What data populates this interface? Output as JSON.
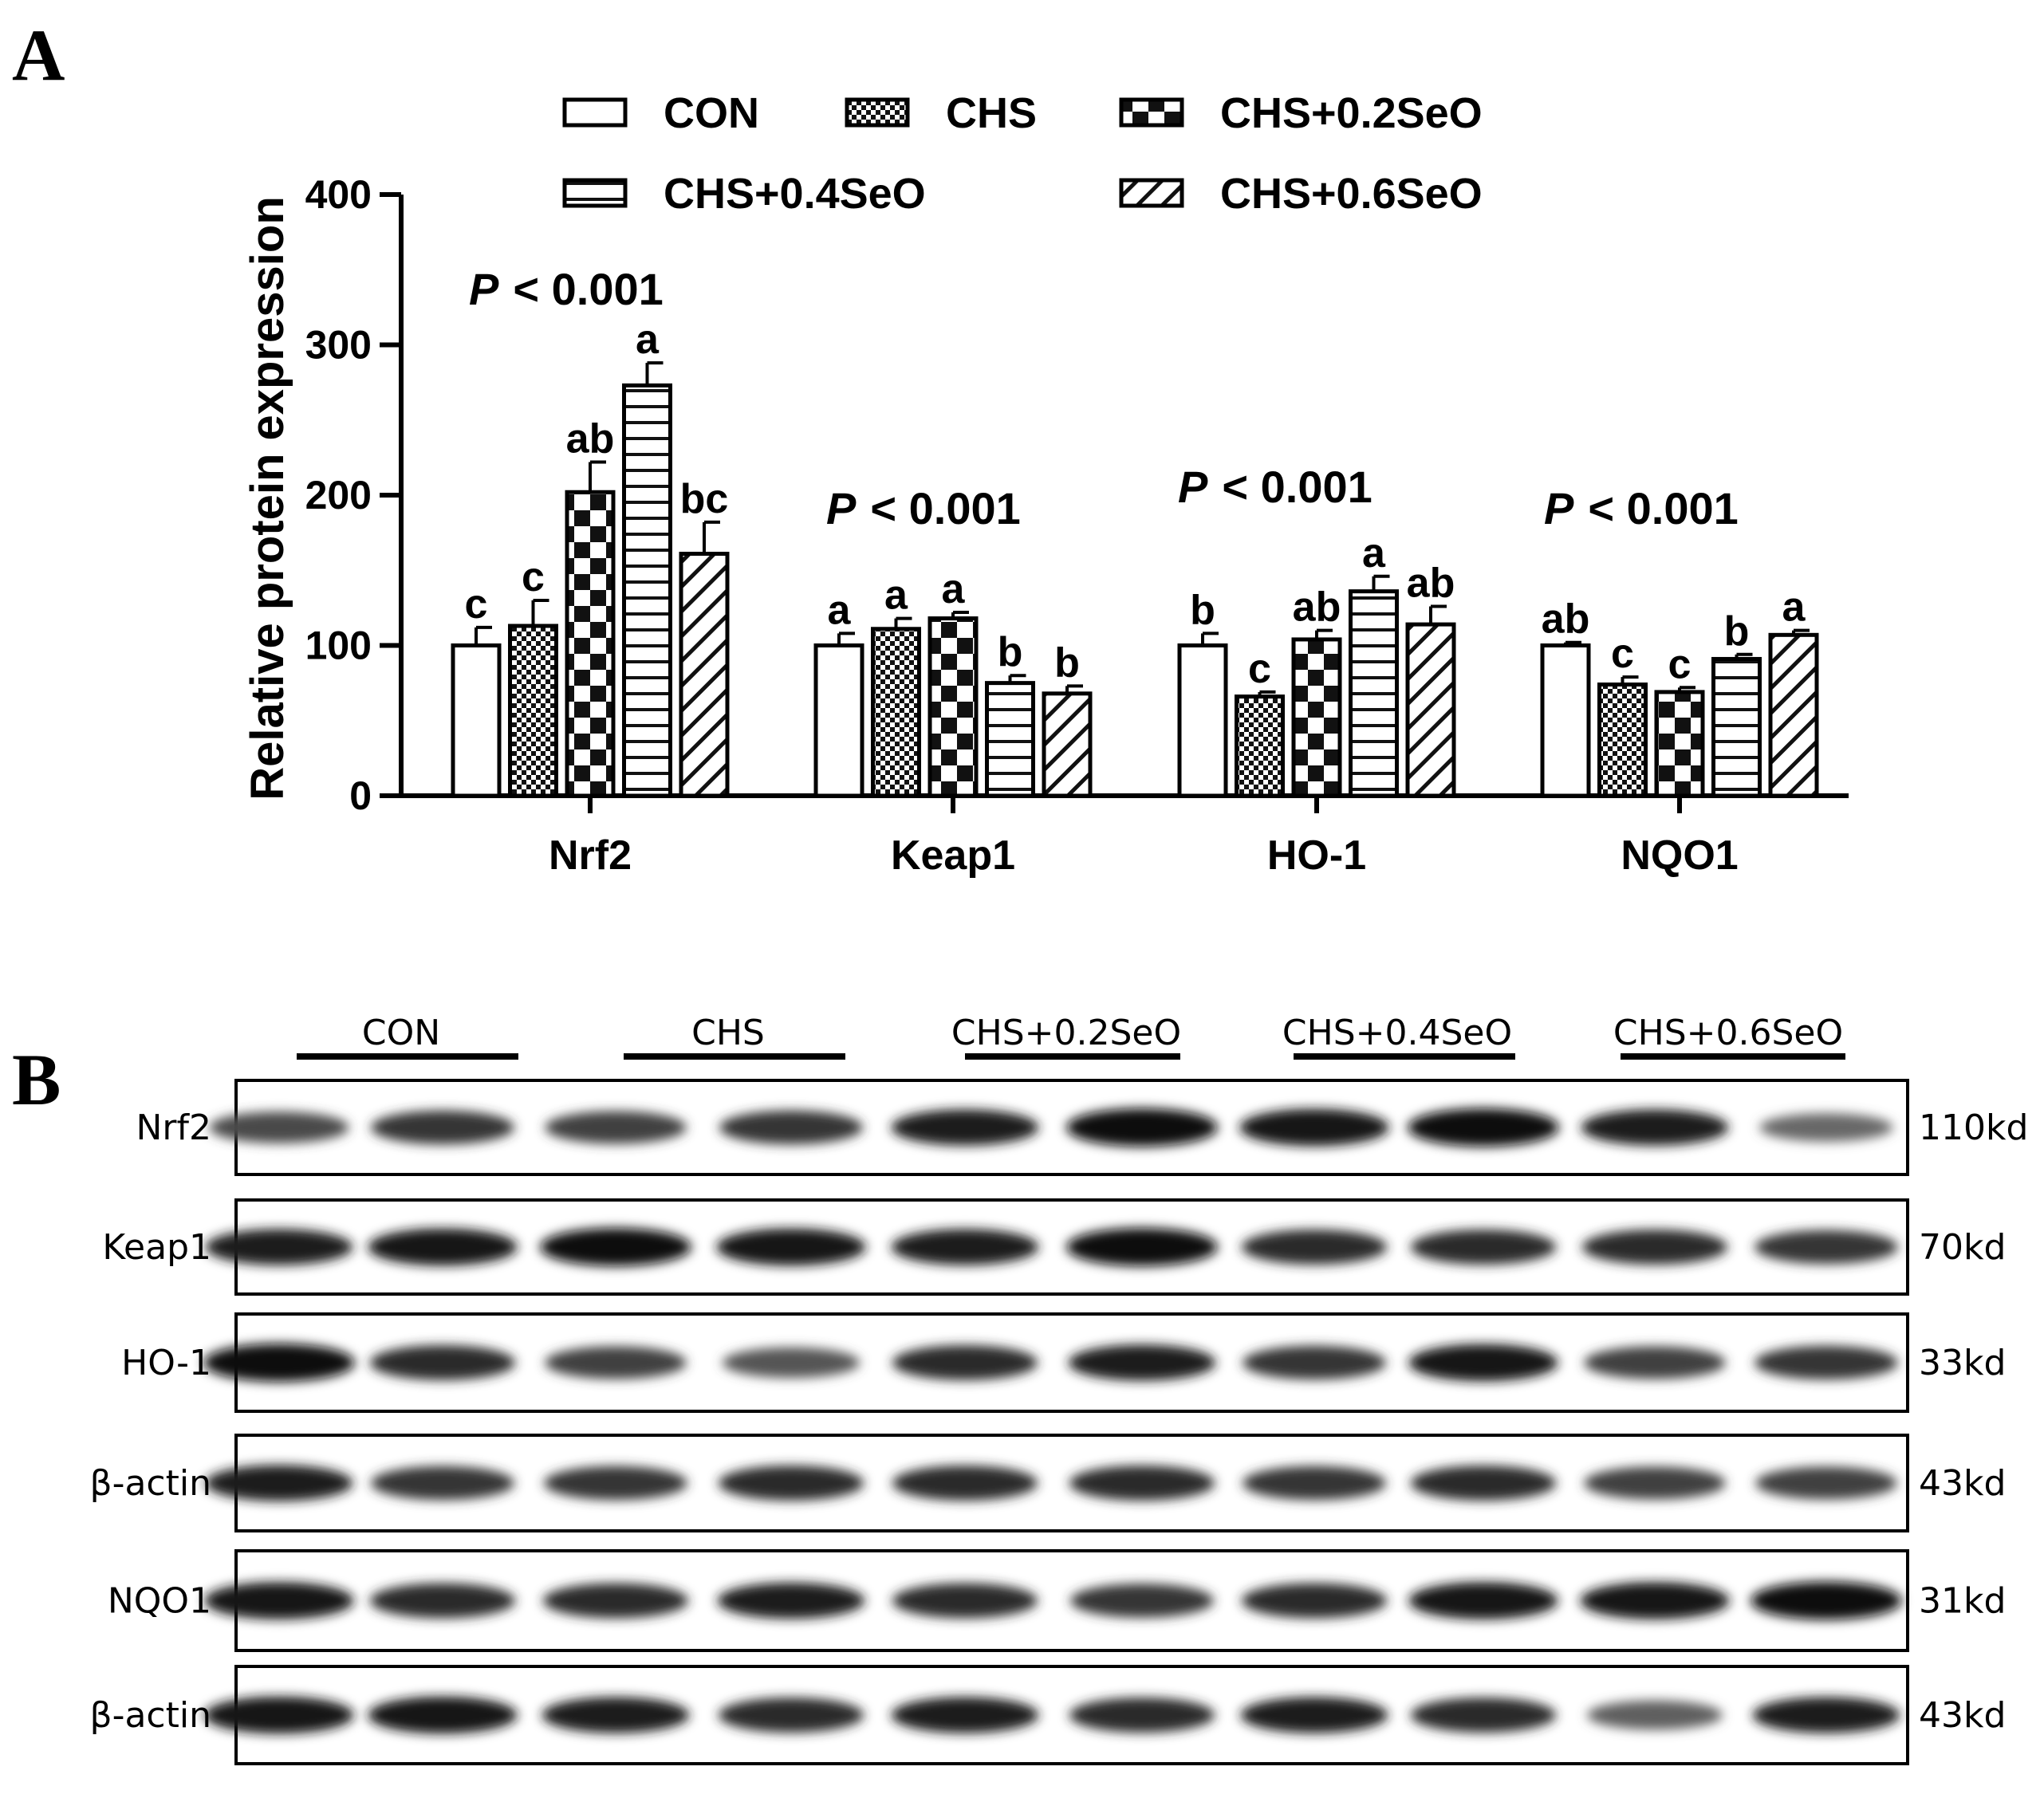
{
  "panel_a_label": "A",
  "panel_b_label": "B",
  "chart_data": {
    "type": "bar",
    "ylabel": "Relative protein expression",
    "xlabel": "",
    "ylim": [
      0,
      400
    ],
    "yticks": [
      "0",
      "100",
      "200",
      "300",
      "400"
    ],
    "grid": false,
    "legend_position": "top",
    "categories": [
      "Nrf2",
      "Keap1",
      "HO-1",
      "NQO1"
    ],
    "series": [
      {
        "name": "CON",
        "pattern": "white",
        "values": [
          100,
          100,
          100,
          100
        ],
        "errors": [
          12,
          8,
          8,
          2
        ],
        "letters": [
          "c",
          "a",
          "b",
          "ab"
        ]
      },
      {
        "name": "CHS",
        "pattern": "fine-checker",
        "values": [
          113,
          111,
          66,
          74
        ],
        "errors": [
          17,
          7,
          3,
          5
        ],
        "letters": [
          "c",
          "a",
          "c",
          "c"
        ]
      },
      {
        "name": "CHS+0.2SeO",
        "pattern": "coarse-checker",
        "values": [
          202,
          118,
          104,
          69
        ],
        "errors": [
          20,
          4,
          6,
          3
        ],
        "letters": [
          "ab",
          "a",
          "ab",
          "c"
        ]
      },
      {
        "name": "CHS+0.4SeO",
        "pattern": "horizontal-lines",
        "values": [
          273,
          75,
          136,
          91
        ],
        "errors": [
          15,
          5,
          10,
          3
        ],
        "letters": [
          "a",
          "b",
          "a",
          "b"
        ]
      },
      {
        "name": "CHS+0.6SeO",
        "pattern": "diagonal-lines",
        "values": [
          161,
          68,
          114,
          107
        ],
        "errors": [
          21,
          5,
          12,
          3
        ],
        "letters": [
          "bc",
          "b",
          "ab",
          "a"
        ]
      }
    ],
    "annotations": [
      {
        "category": "Nrf2",
        "prefix": "P",
        "text": "< 0.001"
      },
      {
        "category": "Keap1",
        "prefix": "P",
        "text": "< 0.001"
      },
      {
        "category": "HO-1",
        "prefix": "P",
        "text": "< 0.001"
      },
      {
        "category": "NQO1",
        "prefix": "P",
        "text": "< 0.001"
      }
    ]
  },
  "blot": {
    "groups": [
      "CON",
      "CHS",
      "CHS+0.2SeO",
      "CHS+0.4SeO",
      "CHS+0.6SeO"
    ],
    "rows": [
      {
        "name": "Nrf2",
        "kd": "110kd",
        "intensity": [
          0.7,
          0.8,
          0.75,
          0.8,
          0.9,
          1.0,
          0.95,
          1.0,
          0.9,
          0.55
        ]
      },
      {
        "name": "Keap1",
        "kd": "70kd",
        "intensity": [
          0.9,
          0.95,
          1.0,
          0.95,
          0.9,
          1.0,
          0.85,
          0.85,
          0.85,
          0.8
        ]
      },
      {
        "name": "HO-1",
        "kd": "33kd",
        "intensity": [
          1.0,
          0.85,
          0.75,
          0.65,
          0.85,
          0.9,
          0.8,
          0.95,
          0.75,
          0.8
        ]
      },
      {
        "name": "β-actin",
        "kd": "43kd",
        "intensity": [
          0.9,
          0.8,
          0.8,
          0.85,
          0.85,
          0.85,
          0.8,
          0.85,
          0.75,
          0.75
        ]
      },
      {
        "name": "NQO1",
        "kd": "31kd",
        "intensity": [
          0.95,
          0.85,
          0.85,
          0.9,
          0.85,
          0.8,
          0.85,
          0.95,
          0.95,
          1.0
        ]
      },
      {
        "name": "β-actin",
        "kd": "43kd",
        "intensity": [
          0.95,
          0.95,
          0.9,
          0.85,
          0.9,
          0.85,
          0.9,
          0.85,
          0.6,
          0.9
        ]
      }
    ]
  }
}
